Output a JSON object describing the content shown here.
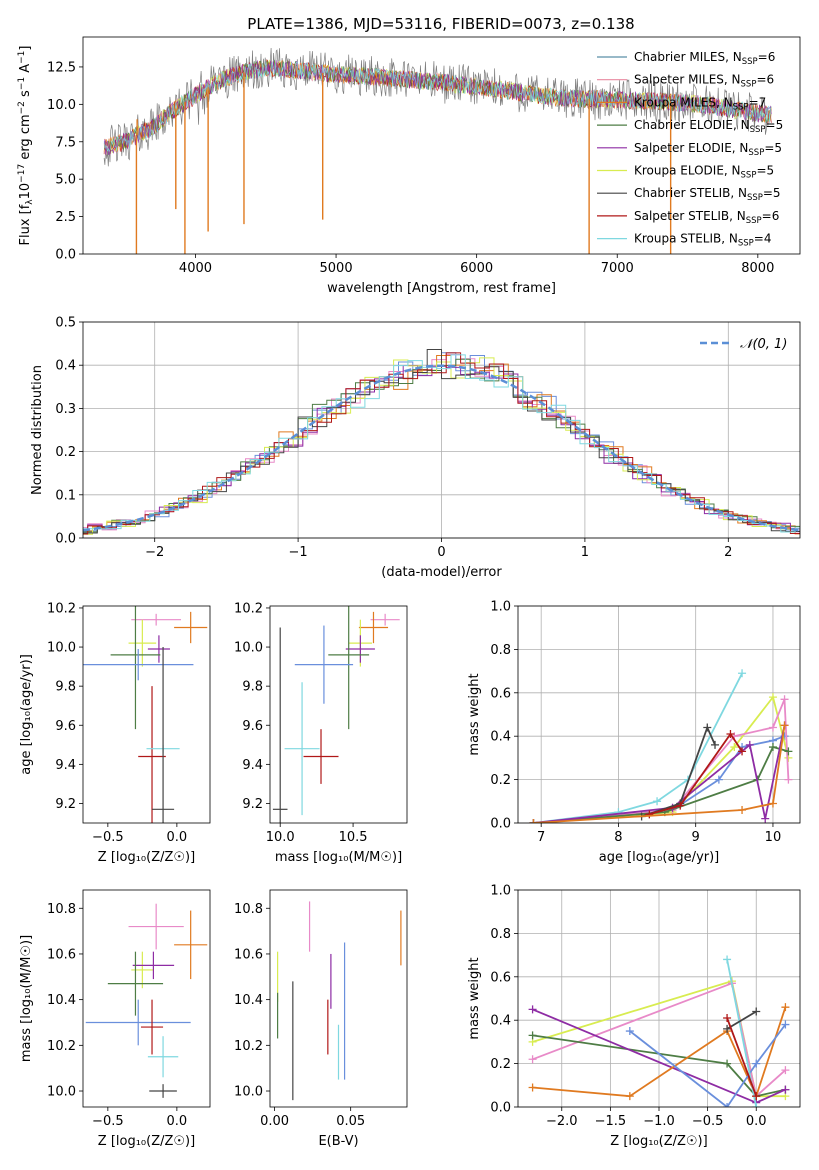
{
  "figure_title": "PLATE=1386, MJD=53116, FIBERID=0073, z=0.138",
  "colors": {
    "Chabrier MILES": "#5b8fa8",
    "Salpeter MILES": "#e88aa0",
    "Kroupa MILES": "#e07a20",
    "Chabrier ELODIE": "#4e7d45",
    "Salpeter ELODIE": "#8e2ca4",
    "Kroupa ELODIE": "#d8ec50",
    "Chabrier STELIB": "#444444",
    "Salpeter STELIB": "#b01818",
    "Kroupa STELIB": "#7fd8e0",
    "blue": "#6a8fdc",
    "pink": "#e88ac8"
  },
  "chart_data": [
    {
      "id": "spectrum",
      "type": "line",
      "title": "PLATE=1386, MJD=53116, FIBERID=0073, z=0.138",
      "xlabel": "wavelength [Angstrom, rest frame]",
      "ylabel": "Flux [f_λ 10⁻¹⁷ erg cm⁻² s⁻¹ A⁻¹]",
      "ylabel_parts": [
        "Flux [",
        "f",
        "λ",
        "10",
        "−17",
        " erg cm",
        "−2",
        " s",
        "−1",
        " A",
        "−1",
        "]"
      ],
      "xlim": [
        3200,
        8300
      ],
      "ylim": [
        0,
        14.5
      ],
      "xticks": [
        4000,
        5000,
        6000,
        7000,
        8000
      ],
      "yticks": [
        0.0,
        2.5,
        5.0,
        7.5,
        10.0,
        12.5
      ],
      "legend": [
        {
          "label": "Chabrier MILES, N",
          "sub": "SSP",
          "tail": "=6",
          "color": "#5b8fa8"
        },
        {
          "label": "Salpeter MILES, N",
          "sub": "SSP",
          "tail": "=6",
          "color": "#e88aa0"
        },
        {
          "label": "Kroupa MILES, N",
          "sub": "SSP",
          "tail": "=7",
          "color": "#e07a20"
        },
        {
          "label": "Chabrier ELODIE, N",
          "sub": "SSP",
          "tail": "=5",
          "color": "#4e7d45"
        },
        {
          "label": "Salpeter ELODIE, N",
          "sub": "SSP",
          "tail": "=5",
          "color": "#8e2ca4"
        },
        {
          "label": "Kroupa ELODIE, N",
          "sub": "SSP",
          "tail": "=5",
          "color": "#d8ec50"
        },
        {
          "label": "Chabrier STELIB, N",
          "sub": "SSP",
          "tail": "=5",
          "color": "#444444"
        },
        {
          "label": "Salpeter STELIB, N",
          "sub": "SSP",
          "tail": "=6",
          "color": "#b01818"
        },
        {
          "label": "Kroupa STELIB, N",
          "sub": "SSP",
          "tail": "=4",
          "color": "#7fd8e0"
        }
      ],
      "continuum": [
        [
          3350,
          7.1
        ],
        [
          3500,
          7.5
        ],
        [
          3600,
          8.0
        ],
        [
          3700,
          8.5
        ],
        [
          3800,
          9.3
        ],
        [
          3900,
          10.0
        ],
        [
          4000,
          10.6
        ],
        [
          4100,
          11.2
        ],
        [
          4200,
          11.7
        ],
        [
          4300,
          12.0
        ],
        [
          4400,
          12.3
        ],
        [
          4500,
          12.4
        ],
        [
          4700,
          12.3
        ],
        [
          5000,
          12.0
        ],
        [
          5300,
          11.8
        ],
        [
          5600,
          11.6
        ],
        [
          6000,
          11.2
        ],
        [
          6300,
          10.8
        ],
        [
          6600,
          10.4
        ],
        [
          7000,
          10.3
        ],
        [
          7300,
          10.2
        ],
        [
          7600,
          10.0
        ],
        [
          8000,
          9.4
        ],
        [
          8100,
          9.3
        ]
      ],
      "spikes": [
        [
          3580,
          -3
        ],
        [
          3585,
          9
        ],
        [
          3860,
          3
        ],
        [
          3925,
          -2
        ],
        [
          4090,
          1.5
        ],
        [
          4345,
          2
        ],
        [
          4905,
          2.3
        ],
        [
          6800,
          -2
        ],
        [
          7380,
          -2
        ],
        [
          7200,
          9.7
        ]
      ]
    },
    {
      "id": "residuals",
      "type": "histogram",
      "xlabel": "(data-model)/error",
      "ylabel": "Normed distribution",
      "xlim": [
        -2.5,
        2.5
      ],
      "ylim": [
        0,
        0.5
      ],
      "xticks": [
        -2,
        -1,
        0,
        1,
        2
      ],
      "yticks": [
        0.0,
        0.1,
        0.2,
        0.3,
        0.4,
        0.5
      ],
      "grid": true,
      "legend": [
        {
          "label": "𝒩(0, 1)",
          "color": "#5b8fd6"
        }
      ],
      "bin_width": 0.1,
      "model_series": [
        "#6a8fdc",
        "#e88ac8",
        "#e07a20",
        "#4e7d45",
        "#8e2ca4",
        "#d8ec50",
        "#444444",
        "#b01818",
        "#7fd8e0"
      ]
    },
    {
      "id": "age_vs_Z",
      "type": "errorbar",
      "xlabel": "Z [log₁₀(Z/Z☉)]",
      "ylabel": "age [log₁₀(age/yr)]",
      "xlim": [
        -0.68,
        0.24
      ],
      "ylim": [
        9.1,
        10.21
      ],
      "xticks": [
        -0.5,
        0.0
      ],
      "yticks": [
        9.2,
        9.4,
        9.6,
        9.8,
        10.0,
        10.2
      ],
      "points": [
        {
          "x": -0.15,
          "xerr": 0.18,
          "y": 10.14,
          "yerr": 0.03,
          "color": "#e88ac8"
        },
        {
          "x": 0.1,
          "xerr": 0.12,
          "y": 10.1,
          "yerr": 0.08,
          "color": "#e07a20"
        },
        {
          "x": -0.25,
          "xerr": 0.1,
          "y": 10.02,
          "yerr": 0.12,
          "color": "#d8ec50"
        },
        {
          "x": -0.13,
          "xerr": 0.08,
          "y": 9.99,
          "yerr": 0.07,
          "color": "#8e2ca4"
        },
        {
          "x": -0.3,
          "xerr": 0.18,
          "y": 9.96,
          "yerr": 0.38,
          "color": "#4e7d45"
        },
        {
          "x": -0.28,
          "xerr": 0.4,
          "y": 9.91,
          "yerr": 0.08,
          "color": "#6a8fdc"
        },
        {
          "x": -0.18,
          "xerr": 0.1,
          "y": 9.44,
          "yerr": 0.36,
          "color": "#b01818"
        },
        {
          "x": -0.1,
          "xerr": 0.12,
          "y": 9.48,
          "yerr": 0.02,
          "color": "#7fd8e0"
        },
        {
          "x": -0.1,
          "xerr": 0.08,
          "y": 9.17,
          "yerr": 0.83,
          "color": "#444444"
        }
      ]
    },
    {
      "id": "age_vs_mass",
      "type": "errorbar",
      "xlabel": "mass [log₁₀(M/M☉)]",
      "ylabel": "",
      "xlim": [
        9.93,
        10.87
      ],
      "ylim": [
        9.1,
        10.21
      ],
      "xticks": [
        10.0,
        10.5
      ],
      "yticks": [
        9.2,
        9.4,
        9.6,
        9.8,
        10.0,
        10.2
      ],
      "points": [
        {
          "x": 10.72,
          "xerr": 0.1,
          "y": 10.14,
          "yerr": 0.03,
          "color": "#e88ac8"
        },
        {
          "x": 10.64,
          "xerr": 0.1,
          "y": 10.1,
          "yerr": 0.08,
          "color": "#e07a20"
        },
        {
          "x": 10.55,
          "xerr": 0.08,
          "y": 10.02,
          "yerr": 0.12,
          "color": "#d8ec50"
        },
        {
          "x": 10.55,
          "xerr": 0.1,
          "y": 9.99,
          "yerr": 0.07,
          "color": "#8e2ca4"
        },
        {
          "x": 10.47,
          "xerr": 0.14,
          "y": 9.96,
          "yerr": 0.38,
          "color": "#4e7d45"
        },
        {
          "x": 10.3,
          "xerr": 0.2,
          "y": 9.91,
          "yerr": 0.2,
          "color": "#6a8fdc"
        },
        {
          "x": 10.28,
          "xerr": 0.12,
          "y": 9.44,
          "yerr": 0.14,
          "color": "#b01818"
        },
        {
          "x": 10.15,
          "xerr": 0.12,
          "y": 9.48,
          "yerr": 0.34,
          "color": "#7fd8e0"
        },
        {
          "x": 10.0,
          "xerr": 0.05,
          "y": 9.17,
          "yerr": 0.93,
          "color": "#444444"
        }
      ]
    },
    {
      "id": "mass_weight_vs_age",
      "type": "line",
      "xlabel": "age [log₁₀(age/yr)]",
      "ylabel": "mass weight",
      "xlim": [
        6.7,
        10.35
      ],
      "ylim": [
        0,
        1.0
      ],
      "xticks": [
        7,
        8,
        9,
        10
      ],
      "yticks": [
        0.0,
        0.2,
        0.4,
        0.6,
        0.8,
        1.0
      ],
      "grid": true,
      "series": [
        {
          "color": "#7fd8e0",
          "points": [
            [
              6.9,
              0.0
            ],
            [
              8.0,
              0.05
            ],
            [
              8.5,
              0.1
            ],
            [
              8.9,
              0.2
            ],
            [
              9.6,
              0.69
            ]
          ]
        },
        {
          "color": "#6a8fdc",
          "points": [
            [
              6.9,
              0.0
            ],
            [
              8.7,
              0.06
            ],
            [
              9.3,
              0.2
            ],
            [
              9.6,
              0.35
            ],
            [
              10.0,
              0.38
            ],
            [
              10.15,
              0.4
            ]
          ]
        },
        {
          "color": "#d8ec50",
          "points": [
            [
              6.9,
              0.0
            ],
            [
              8.7,
              0.05
            ],
            [
              9.5,
              0.35
            ],
            [
              10.0,
              0.58
            ],
            [
              10.2,
              0.3
            ]
          ]
        },
        {
          "color": "#e88ac8",
          "points": [
            [
              6.9,
              0.0
            ],
            [
              8.7,
              0.06
            ],
            [
              9.5,
              0.4
            ],
            [
              10.0,
              0.44
            ],
            [
              10.15,
              0.57
            ],
            [
              10.2,
              0.2
            ]
          ]
        },
        {
          "color": "#4e7d45",
          "points": [
            [
              6.9,
              0.0
            ],
            [
              8.6,
              0.05
            ],
            [
              9.8,
              0.2
            ],
            [
              10.0,
              0.35
            ],
            [
              10.2,
              0.33
            ]
          ]
        },
        {
          "color": "#8e2ca4",
          "points": [
            [
              6.9,
              0.0
            ],
            [
              8.7,
              0.07
            ],
            [
              9.7,
              0.36
            ],
            [
              9.9,
              0.02
            ],
            [
              10.15,
              0.45
            ]
          ]
        },
        {
          "color": "#444444",
          "points": [
            [
              8.3,
              0.03
            ],
            [
              8.8,
              0.09
            ],
            [
              9.15,
              0.44
            ],
            [
              9.25,
              0.36
            ]
          ]
        },
        {
          "color": "#b01818",
          "points": [
            [
              8.4,
              0.04
            ],
            [
              8.8,
              0.08
            ],
            [
              9.45,
              0.41
            ],
            [
              9.6,
              0.33
            ]
          ]
        },
        {
          "color": "#e07a20",
          "points": [
            [
              6.9,
              0.0
            ],
            [
              9.6,
              0.06
            ],
            [
              10.0,
              0.09
            ],
            [
              10.15,
              0.45
            ]
          ]
        }
      ]
    },
    {
      "id": "mass_vs_Z",
      "type": "errorbar",
      "xlabel": "Z [log₁₀(Z/Z☉)]",
      "ylabel": "mass [log₁₀(M/M☉)]",
      "xlim": [
        -0.68,
        0.24
      ],
      "ylim": [
        9.93,
        10.88
      ],
      "xticks": [
        -0.5,
        0.0
      ],
      "yticks": [
        10.0,
        10.2,
        10.4,
        10.6,
        10.8
      ],
      "points": [
        {
          "x": -0.15,
          "xerr": 0.2,
          "y": 10.72,
          "yerr": 0.1,
          "color": "#e88ac8"
        },
        {
          "x": 0.1,
          "xerr": 0.12,
          "y": 10.64,
          "yerr": 0.15,
          "color": "#e07a20"
        },
        {
          "x": -0.25,
          "xerr": 0.08,
          "y": 10.53,
          "yerr": 0.08,
          "color": "#d8ec50"
        },
        {
          "x": -0.17,
          "xerr": 0.15,
          "y": 10.55,
          "yerr": 0.06,
          "color": "#8e2ca4"
        },
        {
          "x": -0.3,
          "xerr": 0.2,
          "y": 10.47,
          "yerr": 0.14,
          "color": "#4e7d45"
        },
        {
          "x": -0.28,
          "xerr": 0.38,
          "y": 10.3,
          "yerr": 0.1,
          "color": "#6a8fdc"
        },
        {
          "x": -0.18,
          "xerr": 0.08,
          "y": 10.28,
          "yerr": 0.12,
          "color": "#b01818"
        },
        {
          "x": -0.1,
          "xerr": 0.11,
          "y": 10.15,
          "yerr": 0.09,
          "color": "#7fd8e0"
        },
        {
          "x": -0.1,
          "xerr": 0.1,
          "y": 10.0,
          "yerr": 0.03,
          "color": "#444444"
        }
      ]
    },
    {
      "id": "mass_vs_ebv",
      "type": "errorbar",
      "xlabel": "E(B-V)",
      "ylabel": "",
      "xlim": [
        -0.003,
        0.087
      ],
      "ylim": [
        9.93,
        10.88
      ],
      "xticks": [
        0.0,
        0.05
      ],
      "yticks": [
        10.0,
        10.2,
        10.4,
        10.6,
        10.8
      ],
      "points": [
        {
          "x": 0.023,
          "y": 10.72,
          "yerr": 0.11,
          "color": "#e88ac8"
        },
        {
          "x": 0.083,
          "y": 10.67,
          "yerr": 0.12,
          "color": "#e07a20"
        },
        {
          "x": 0.002,
          "y": 10.5,
          "yerr": 0.11,
          "color": "#d8ec50"
        },
        {
          "x": 0.037,
          "y": 10.48,
          "yerr": 0.12,
          "color": "#8e2ca4"
        },
        {
          "x": 0.002,
          "y": 10.33,
          "yerr": 0.1,
          "color": "#4e7d45"
        },
        {
          "x": 0.046,
          "y": 10.35,
          "yerr": 0.3,
          "color": "#6a8fdc"
        },
        {
          "x": 0.035,
          "y": 10.28,
          "yerr": 0.12,
          "color": "#b01818"
        },
        {
          "x": 0.042,
          "y": 10.17,
          "yerr": 0.12,
          "color": "#7fd8e0"
        },
        {
          "x": 0.012,
          "y": 10.22,
          "yerr": 0.26,
          "color": "#444444"
        }
      ]
    },
    {
      "id": "mass_weight_vs_Z",
      "type": "line",
      "xlabel": "Z [log₁₀(Z/Z☉)]",
      "ylabel": "mass weight",
      "xlim": [
        -2.45,
        0.45
      ],
      "ylim": [
        0,
        1.0
      ],
      "xticks": [
        -2.0,
        -1.5,
        -1.0,
        -0.5,
        0.0
      ],
      "yticks": [
        0.0,
        0.2,
        0.4,
        0.6,
        0.8,
        1.0
      ],
      "grid": true,
      "series": [
        {
          "color": "#d8ec50",
          "points": [
            [
              -2.3,
              0.3
            ],
            [
              -0.25,
              0.58
            ],
            [
              0.0,
              0.05
            ],
            [
              0.3,
              0.05
            ]
          ]
        },
        {
          "color": "#e88ac8",
          "points": [
            [
              -2.3,
              0.22
            ],
            [
              -0.25,
              0.57
            ],
            [
              0.0,
              0.05
            ],
            [
              0.3,
              0.17
            ]
          ]
        },
        {
          "color": "#4e7d45",
          "points": [
            [
              -2.3,
              0.33
            ],
            [
              -0.3,
              0.2
            ],
            [
              0.0,
              0.05
            ],
            [
              0.3,
              0.08
            ]
          ]
        },
        {
          "color": "#8e2ca4",
          "points": [
            [
              -2.3,
              0.45
            ],
            [
              0.0,
              0.02
            ],
            [
              0.3,
              0.08
            ]
          ]
        },
        {
          "color": "#e07a20",
          "points": [
            [
              -2.3,
              0.09
            ],
            [
              -1.3,
              0.05
            ],
            [
              -0.3,
              0.35
            ],
            [
              0.0,
              0.05
            ],
            [
              0.3,
              0.46
            ]
          ]
        },
        {
          "color": "#6a8fdc",
          "points": [
            [
              -1.3,
              0.35
            ],
            [
              -0.3,
              0.0
            ],
            [
              0.0,
              0.2
            ],
            [
              0.3,
              0.38
            ]
          ]
        },
        {
          "color": "#7fd8e0",
          "points": [
            [
              -0.3,
              0.68
            ],
            [
              0.0,
              0.0
            ]
          ]
        },
        {
          "color": "#444444",
          "points": [
            [
              -0.3,
              0.36
            ],
            [
              0.0,
              0.44
            ]
          ]
        },
        {
          "color": "#b01818",
          "points": [
            [
              -0.3,
              0.41
            ],
            [
              0.0,
              0.05
            ]
          ]
        }
      ]
    }
  ]
}
